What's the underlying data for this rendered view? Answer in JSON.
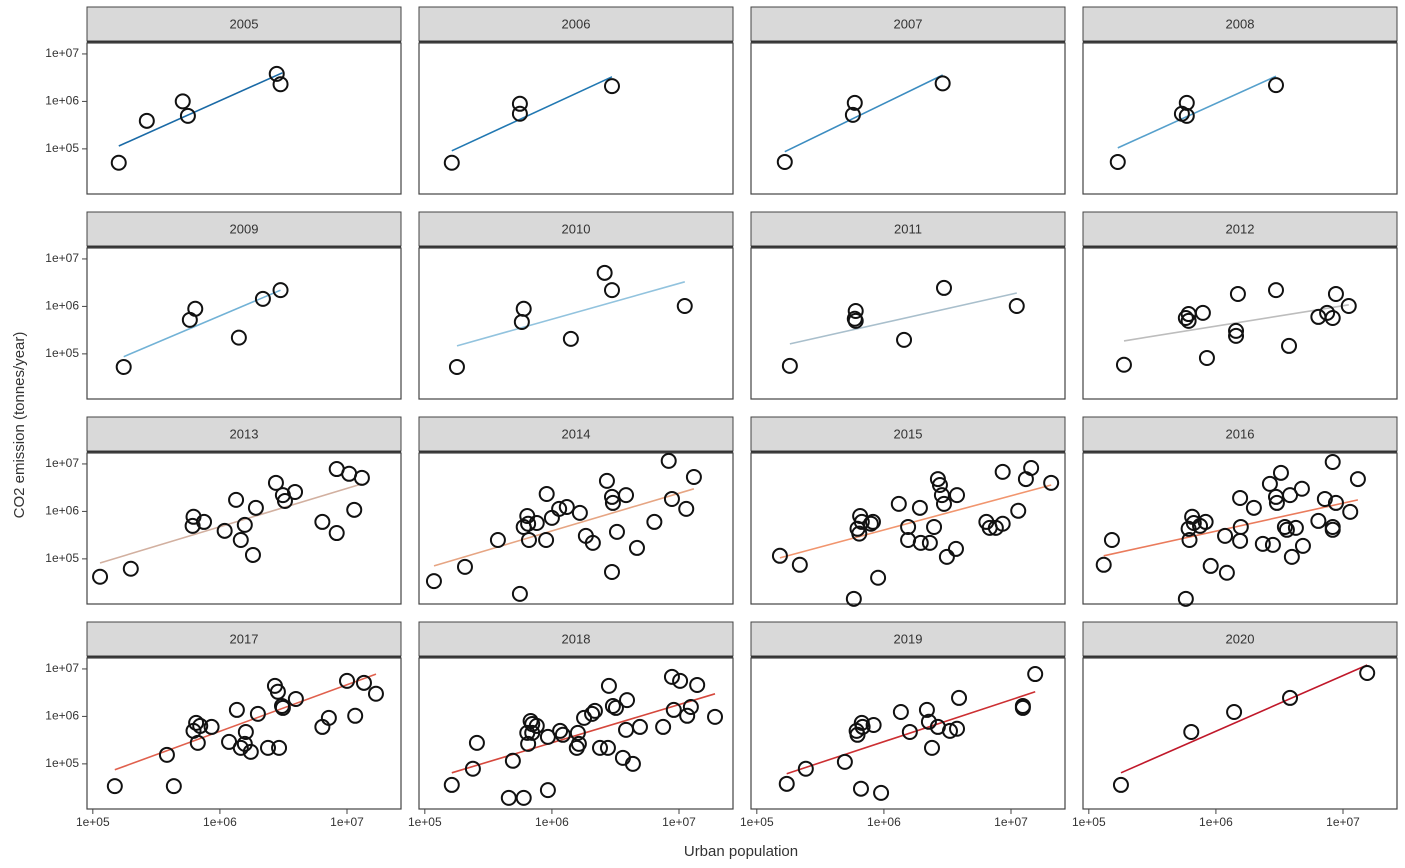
{
  "chart_data": {
    "type": "scatter",
    "xlabel": "Urban population",
    "ylabel": "CO2 emission (tonnes/year)",
    "log_x": true,
    "log_y": true,
    "xlim": [
      90000,
      26600000
    ],
    "ylim": [
      11200,
      17000000
    ],
    "xticks": [
      {
        "value": 100000,
        "label": "1e+05"
      },
      {
        "value": 1000000,
        "label": "1e+06"
      },
      {
        "value": 10000000,
        "label": "1e+07"
      }
    ],
    "yticks": [
      {
        "value": 100000,
        "label": "1e+05"
      },
      {
        "value": 1000000,
        "label": "1e+06"
      },
      {
        "value": 10000000,
        "label": "1e+07"
      }
    ],
    "panels": [
      {
        "title": "2005",
        "color": "#1a6aa6",
        "x": [
          160000.0,
          266000.0,
          510000.0,
          560000.0,
          2800000.0,
          3000000.0
        ],
        "y": [
          51000.0,
          390000.0,
          1000000.0,
          495000.0,
          3800000.0,
          2300000.0
        ],
        "fit": {
          "x": [
            160000.0,
            3100000.0
          ],
          "y": [
            115000.0,
            4000000.0
          ]
        }
      },
      {
        "title": "2006",
        "color": "#2178b2",
        "x": [
          163000.0,
          560000.0,
          560000.0,
          2970000.0
        ],
        "y": [
          51000.0,
          890000.0,
          550000.0,
          2100000.0
        ],
        "fit": {
          "x": [
            163000.0,
            2970000.0
          ],
          "y": [
            91000.0,
            3300000.0
          ]
        }
      },
      {
        "title": "2007",
        "color": "#3b8cc0",
        "x": [
          166000.0,
          590000.0,
          570000.0,
          2900000.0
        ],
        "y": [
          53000.0,
          930000.0,
          520000.0,
          2400000.0
        ],
        "fit": {
          "x": [
            166000.0,
            2900000.0
          ],
          "y": [
            87000.0,
            3600000.0
          ]
        }
      },
      {
        "title": "2008",
        "color": "#56a0cc",
        "x": [
          169000.0,
          590000.0,
          540000.0,
          590000.0,
          2970000.0
        ],
        "y": [
          53000.0,
          930000.0,
          550000.0,
          495000.0,
          2200000.0
        ],
        "fit": {
          "x": [
            169000.0,
            2970000.0
          ],
          "y": [
            105000.0,
            3400000.0
          ]
        }
      },
      {
        "title": "2009",
        "color": "#72b2d6",
        "x": [
          175000.0,
          580000.0,
          640000.0,
          1410000.0,
          2180000.0,
          3000000.0
        ],
        "y": [
          53000.0,
          520000.0,
          890000.0,
          220000.0,
          1440000.0,
          2200000.0
        ],
        "fit": {
          "x": [
            175000.0,
            3000000.0
          ],
          "y": [
            87000.0,
            2200000.0
          ]
        }
      },
      {
        "title": "2010",
        "color": "#92c3de",
        "x": [
          179000.0,
          600000.0,
          580000.0,
          1410000.0,
          2600000.0,
          2970000.0,
          11100000.0
        ],
        "y": [
          53000.0,
          890000.0,
          470000.0,
          207000.0,
          5100000.0,
          2200000.0,
          1020000.0
        ],
        "fit": {
          "x": [
            179000.0,
            11100000.0
          ],
          "y": [
            147000.0,
            3300000.0
          ]
        }
      },
      {
        "title": "2011",
        "color": "#a9bfcc",
        "x": [
          182000.0,
          600000.0,
          590000.0,
          600000.0,
          1440000.0,
          2970000.0,
          11100000.0
        ],
        "y": [
          56000.0,
          800000.0,
          550000.0,
          495000.0,
          197000.0,
          2450000.0,
          1020000.0
        ],
        "fit": {
          "x": [
            182000.0,
            11100000.0
          ],
          "y": [
            162000.0,
            1920000.0
          ]
        }
      },
      {
        "title": "2012",
        "color": "#bdbdbd",
        "x": [
          189000.0,
          610000.0,
          610000.0,
          580000.0,
          790000.0,
          850000.0,
          1440000.0,
          1440000.0,
          1490000.0,
          2970000.0,
          3760000.0,
          6400000.0,
          7500000.0,
          8300000.0,
          8800000.0,
          11100000.0
        ],
        "y": [
          59000.0,
          690000.0,
          495000.0,
          570000.0,
          730000.0,
          82000.0,
          305000.0,
          240000.0,
          1830000.0,
          2200000.0,
          147000.0,
          600000.0,
          730000.0,
          570000.0,
          1830000.0,
          1020000.0
        ],
        "fit": {
          "x": [
            189000.0,
            11100000.0
          ],
          "y": [
            188000.0,
            1080000.0
          ]
        }
      },
      {
        "title": "2013",
        "color": "#d2b0a0",
        "x": [
          114000.0,
          199000.0,
          610000.0,
          620000.0,
          750000.0,
          1090000.0,
          1340000.0,
          1460000.0,
          1570000.0,
          1820000.0,
          1920000.0,
          2760000.0,
          3130000.0,
          3250000.0,
          3900000.0,
          6400000.0,
          8300000.0,
          8300000.0,
          10400000.0,
          11400000.0,
          13100000.0
        ],
        "y": [
          42000.0,
          62000.0,
          495000.0,
          770000.0,
          600000.0,
          390000.0,
          1750000.0,
          250000.0,
          520000.0,
          121000.0,
          1190000.0,
          4000000.0,
          2200000.0,
          1660000.0,
          2570000.0,
          600000.0,
          350000.0,
          7800000.0,
          6200000.0,
          1080000.0,
          5100000.0
        ],
        "fit": {
          "x": [
            114000.0,
            13100000.0
          ],
          "y": [
            82000.0,
            3800000.0
          ]
        }
      },
      {
        "title": "2014",
        "color": "#e6a583",
        "x": [
          118000.0,
          207000.0,
          376000.0,
          560000.0,
          640000.0,
          650000.0,
          600000.0,
          660000.0,
          760000.0,
          900000.0,
          910000.0,
          1000000.0,
          1140000.0,
          1310000.0,
          1660000.0,
          1850000.0,
          2100000.0,
          2710000.0,
          2970000.0,
          2970000.0,
          3020000.0,
          3250000.0,
          3830000.0,
          4670000.0,
          6400000.0,
          8300000.0,
          8800000.0,
          11400000.0,
          13100000.0
        ],
        "y": [
          34000.0,
          68000.0,
          250000.0,
          18300.0,
          800000.0,
          550000.0,
          470000.0,
          250000.0,
          570000.0,
          250000.0,
          2330000.0,
          730000.0,
          1130000.0,
          1240000.0,
          930000.0,
          305000.0,
          217000.0,
          4400000.0,
          2020000.0,
          53000.0,
          1510000.0,
          370000.0,
          2200000.0,
          170000.0,
          600000.0,
          11600000.0,
          1830000.0,
          1130000.0,
          5300000.0
        ],
        "fit": {
          "x": [
            118000.0,
            13100000.0
          ],
          "y": [
            71000.0,
            3000000.0
          ]
        }
      },
      {
        "title": "2015",
        "color": "#f1956e",
        "x": [
          152000.0,
          218000.0,
          580000.0,
          620000.0,
          640000.0,
          650000.0,
          670000.0,
          790000.0,
          820000.0,
          900000.0,
          1310000.0,
          1550000.0,
          1550000.0,
          1920000.0,
          1950000.0,
          2300000.0,
          2480000.0,
          2660000.0,
          2760000.0,
          2860000.0,
          2970000.0,
          3130000.0,
          3690000.0,
          3760000.0,
          6400000.0,
          6800000.0,
          7600000.0,
          8600000.0,
          8600000.0,
          11400000.0,
          13100000.0,
          14400000.0,
          20700000.0
        ],
        "y": [
          116000.0,
          75000.0,
          14400.0,
          430000.0,
          340000.0,
          800000.0,
          600000.0,
          550000.0,
          600000.0,
          40000.0,
          1440000.0,
          470000.0,
          250000.0,
          1190000.0,
          217000.0,
          217000.0,
          470000.0,
          4800000.0,
          3600000.0,
          2200000.0,
          1440000.0,
          110000.0,
          162000.0,
          2200000.0,
          600000.0,
          450000.0,
          450000.0,
          6800000.0,
          550000.0,
          1030000.0,
          4800000.0,
          8200000.0,
          4000000.0
        ],
        "fit": {
          "x": [
            152000.0,
            20700000.0
          ],
          "y": [
            105000.0,
            3600000.0
          ]
        }
      },
      {
        "title": "2016",
        "color": "#ea7b5c",
        "x": [
          131000.0,
          152000.0,
          580000.0,
          610000.0,
          620000.0,
          650000.0,
          670000.0,
          750000.0,
          830000.0,
          910000.0,
          1180000.0,
          1220000.0,
          1550000.0,
          1570000.0,
          1550000.0,
          1990000.0,
          2340000.0,
          2660000.0,
          2810000.0,
          2970000.0,
          3020000.0,
          3250000.0,
          3490000.0,
          3620000.0,
          3830000.0,
          3960000.0,
          4260000.0,
          4750000.0,
          4840000.0,
          6400000.0,
          7200000.0,
          8300000.0,
          8300000.0,
          8300000.0,
          8800000.0,
          11400000.0,
          13100000.0
        ],
        "y": [
          75000.0,
          250000.0,
          14400.0,
          430000.0,
          250000.0,
          770000.0,
          570000.0,
          495000.0,
          600000.0,
          71000.0,
          305000.0,
          51000.0,
          1920000.0,
          470000.0,
          240000.0,
          1190000.0,
          207000.0,
          3800000.0,
          197000.0,
          2020000.0,
          1510000.0,
          6500000.0,
          470000.0,
          410000.0,
          2200000.0,
          110000.0,
          450000.0,
          3000000.0,
          188000.0,
          630000.0,
          1830000.0,
          11000000.0,
          410000.0,
          470000.0,
          1510000.0,
          980000.0,
          4800000.0
        ],
        "fit": {
          "x": [
            131000.0,
            13100000.0
          ],
          "y": [
            116000.0,
            1750000.0
          ]
        }
      },
      {
        "title": "2017",
        "color": "#e0604d",
        "x": [
          149000.0,
          383000.0,
          434000.0,
          620000.0,
          650000.0,
          670000.0,
          700000.0,
          860000.0,
          1180000.0,
          1360000.0,
          1460000.0,
          1600000.0,
          1570000.0,
          1750000.0,
          1990000.0,
          2390000.0,
          2710000.0,
          2860000.0,
          2920000.0,
          3080000.0,
          3130000.0,
          3960000.0,
          6400000.0,
          7200000.0,
          10000000.0,
          11600000.0,
          13600000.0,
          16900000.0
        ],
        "y": [
          34000.0,
          155000.0,
          34000.0,
          495000.0,
          730000.0,
          277000.0,
          630000.0,
          600000.0,
          290000.0,
          1370000.0,
          217000.0,
          470000.0,
          264000.0,
          179000.0,
          1130000.0,
          217000.0,
          4400000.0,
          3300000.0,
          217000.0,
          1660000.0,
          1510000.0,
          2330000.0,
          600000.0,
          930000.0,
          5600000.0,
          1030000.0,
          5100000.0,
          3000000.0
        ],
        "fit": {
          "x": [
            149000.0,
            16900000.0
          ],
          "y": [
            75000.0,
            7800000.0
          ]
        }
      },
      {
        "title": "2018",
        "color": "#d5473c",
        "x": [
          163000.0,
          239000.0,
          257000.0,
          458000.0,
          493000.0,
          600000.0,
          650000.0,
          640000.0,
          680000.0,
          700000.0,
          700000.0,
          760000.0,
          930000.0,
          930000.0,
          1160000.0,
          1220000.0,
          1570000.0,
          1630000.0,
          1600000.0,
          1790000.0,
          2070000.0,
          2180000.0,
          2390000.0,
          2760000.0,
          2810000.0,
          3020000.0,
          3190000.0,
          3620000.0,
          3830000.0,
          3900000.0,
          4340000.0,
          4930000.0,
          7500000.0,
          8800000.0,
          9100000.0,
          10200000.0,
          11600000.0,
          12400000.0,
          13900000.0,
          19200000.0
        ],
        "y": [
          36000.0,
          79000.0,
          277000.0,
          19200.0,
          116000.0,
          19200.0,
          264000.0,
          450000.0,
          800000.0,
          690000.0,
          450000.0,
          630000.0,
          28000.0,
          370000.0,
          495000.0,
          410000.0,
          217000.0,
          264000.0,
          450000.0,
          930000.0,
          1130000.0,
          1310000.0,
          217000.0,
          217000.0,
          4400000.0,
          1660000.0,
          1510000.0,
          134000.0,
          520000.0,
          2200000.0,
          100000.0,
          600000.0,
          600000.0,
          6800000.0,
          1370000.0,
          5600000.0,
          1030000.0,
          1580000.0,
          4600000.0,
          980000.0
        ],
        "fit": {
          "x": [
            163000.0,
            19200000.0
          ],
          "y": [
            65000.0,
            3000000.0
          ]
        }
      },
      {
        "title": "2019",
        "color": "#cc2f32",
        "x": [
          172000.0,
          243000.0,
          493000.0,
          660000.0,
          620000.0,
          610000.0,
          670000.0,
          680000.0,
          830000.0,
          950000.0,
          1360000.0,
          1600000.0,
          2180000.0,
          2260000.0,
          2390000.0,
          2660000.0,
          3310000.0,
          3760000.0,
          3900000.0,
          12400000.0,
          12400000.0,
          15500000.0
        ],
        "y": [
          38000.0,
          79000.0,
          110000.0,
          30000.0,
          410000.0,
          495000.0,
          730000.0,
          600000.0,
          660000.0,
          24500.0,
          1240000.0,
          470000.0,
          1370000.0,
          770000.0,
          217000.0,
          600000.0,
          495000.0,
          550000.0,
          2450000.0,
          1510000.0,
          1660000.0,
          7800000.0
        ],
        "fit": {
          "x": [
            172000.0,
            15500000.0
          ],
          "y": [
            62000.0,
            3300000.0
          ]
        }
      },
      {
        "title": "2020",
        "color": "#c0182a",
        "x": [
          179000.0,
          640000.0,
          1390000.0,
          3830000.0,
          15500000.0
        ],
        "y": [
          36000.0,
          470000.0,
          1240000.0,
          2450000.0,
          8200000.0
        ],
        "fit": {
          "x": [
            179000.0,
            15500000.0
          ],
          "y": [
            65000.0,
            12100000.0
          ]
        }
      }
    ]
  }
}
